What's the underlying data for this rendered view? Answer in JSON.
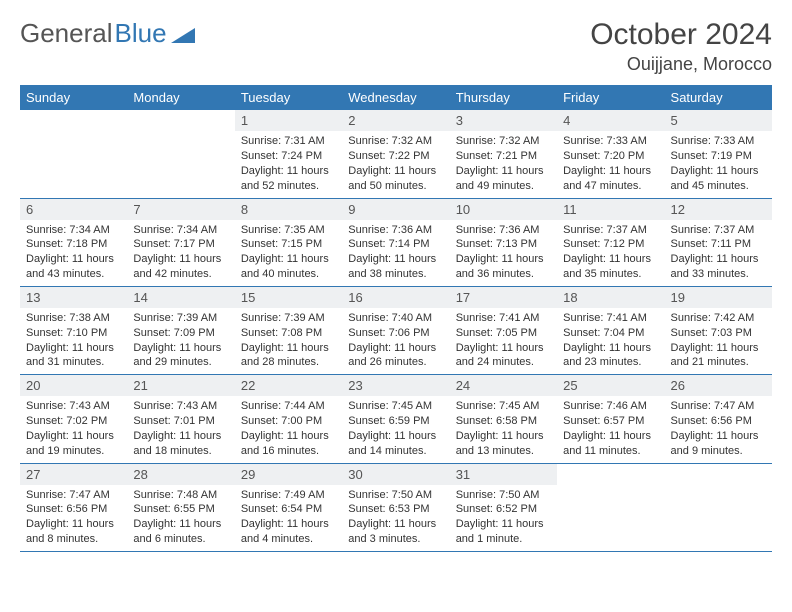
{
  "logo": {
    "text1": "General",
    "text2": "Blue"
  },
  "title": "October 2024",
  "location": "Ouijjane, Morocco",
  "colors": {
    "header_bg": "#3277b3",
    "daynum_bg": "#eef0f2"
  },
  "day_headers": [
    "Sunday",
    "Monday",
    "Tuesday",
    "Wednesday",
    "Thursday",
    "Friday",
    "Saturday"
  ],
  "weeks": [
    [
      {
        "n": "",
        "sr": "",
        "ss": "",
        "dl": ""
      },
      {
        "n": "",
        "sr": "",
        "ss": "",
        "dl": ""
      },
      {
        "n": "1",
        "sr": "Sunrise: 7:31 AM",
        "ss": "Sunset: 7:24 PM",
        "dl": "Daylight: 11 hours and 52 minutes."
      },
      {
        "n": "2",
        "sr": "Sunrise: 7:32 AM",
        "ss": "Sunset: 7:22 PM",
        "dl": "Daylight: 11 hours and 50 minutes."
      },
      {
        "n": "3",
        "sr": "Sunrise: 7:32 AM",
        "ss": "Sunset: 7:21 PM",
        "dl": "Daylight: 11 hours and 49 minutes."
      },
      {
        "n": "4",
        "sr": "Sunrise: 7:33 AM",
        "ss": "Sunset: 7:20 PM",
        "dl": "Daylight: 11 hours and 47 minutes."
      },
      {
        "n": "5",
        "sr": "Sunrise: 7:33 AM",
        "ss": "Sunset: 7:19 PM",
        "dl": "Daylight: 11 hours and 45 minutes."
      }
    ],
    [
      {
        "n": "6",
        "sr": "Sunrise: 7:34 AM",
        "ss": "Sunset: 7:18 PM",
        "dl": "Daylight: 11 hours and 43 minutes."
      },
      {
        "n": "7",
        "sr": "Sunrise: 7:34 AM",
        "ss": "Sunset: 7:17 PM",
        "dl": "Daylight: 11 hours and 42 minutes."
      },
      {
        "n": "8",
        "sr": "Sunrise: 7:35 AM",
        "ss": "Sunset: 7:15 PM",
        "dl": "Daylight: 11 hours and 40 minutes."
      },
      {
        "n": "9",
        "sr": "Sunrise: 7:36 AM",
        "ss": "Sunset: 7:14 PM",
        "dl": "Daylight: 11 hours and 38 minutes."
      },
      {
        "n": "10",
        "sr": "Sunrise: 7:36 AM",
        "ss": "Sunset: 7:13 PM",
        "dl": "Daylight: 11 hours and 36 minutes."
      },
      {
        "n": "11",
        "sr": "Sunrise: 7:37 AM",
        "ss": "Sunset: 7:12 PM",
        "dl": "Daylight: 11 hours and 35 minutes."
      },
      {
        "n": "12",
        "sr": "Sunrise: 7:37 AM",
        "ss": "Sunset: 7:11 PM",
        "dl": "Daylight: 11 hours and 33 minutes."
      }
    ],
    [
      {
        "n": "13",
        "sr": "Sunrise: 7:38 AM",
        "ss": "Sunset: 7:10 PM",
        "dl": "Daylight: 11 hours and 31 minutes."
      },
      {
        "n": "14",
        "sr": "Sunrise: 7:39 AM",
        "ss": "Sunset: 7:09 PM",
        "dl": "Daylight: 11 hours and 29 minutes."
      },
      {
        "n": "15",
        "sr": "Sunrise: 7:39 AM",
        "ss": "Sunset: 7:08 PM",
        "dl": "Daylight: 11 hours and 28 minutes."
      },
      {
        "n": "16",
        "sr": "Sunrise: 7:40 AM",
        "ss": "Sunset: 7:06 PM",
        "dl": "Daylight: 11 hours and 26 minutes."
      },
      {
        "n": "17",
        "sr": "Sunrise: 7:41 AM",
        "ss": "Sunset: 7:05 PM",
        "dl": "Daylight: 11 hours and 24 minutes."
      },
      {
        "n": "18",
        "sr": "Sunrise: 7:41 AM",
        "ss": "Sunset: 7:04 PM",
        "dl": "Daylight: 11 hours and 23 minutes."
      },
      {
        "n": "19",
        "sr": "Sunrise: 7:42 AM",
        "ss": "Sunset: 7:03 PM",
        "dl": "Daylight: 11 hours and 21 minutes."
      }
    ],
    [
      {
        "n": "20",
        "sr": "Sunrise: 7:43 AM",
        "ss": "Sunset: 7:02 PM",
        "dl": "Daylight: 11 hours and 19 minutes."
      },
      {
        "n": "21",
        "sr": "Sunrise: 7:43 AM",
        "ss": "Sunset: 7:01 PM",
        "dl": "Daylight: 11 hours and 18 minutes."
      },
      {
        "n": "22",
        "sr": "Sunrise: 7:44 AM",
        "ss": "Sunset: 7:00 PM",
        "dl": "Daylight: 11 hours and 16 minutes."
      },
      {
        "n": "23",
        "sr": "Sunrise: 7:45 AM",
        "ss": "Sunset: 6:59 PM",
        "dl": "Daylight: 11 hours and 14 minutes."
      },
      {
        "n": "24",
        "sr": "Sunrise: 7:45 AM",
        "ss": "Sunset: 6:58 PM",
        "dl": "Daylight: 11 hours and 13 minutes."
      },
      {
        "n": "25",
        "sr": "Sunrise: 7:46 AM",
        "ss": "Sunset: 6:57 PM",
        "dl": "Daylight: 11 hours and 11 minutes."
      },
      {
        "n": "26",
        "sr": "Sunrise: 7:47 AM",
        "ss": "Sunset: 6:56 PM",
        "dl": "Daylight: 11 hours and 9 minutes."
      }
    ],
    [
      {
        "n": "27",
        "sr": "Sunrise: 7:47 AM",
        "ss": "Sunset: 6:56 PM",
        "dl": "Daylight: 11 hours and 8 minutes."
      },
      {
        "n": "28",
        "sr": "Sunrise: 7:48 AM",
        "ss": "Sunset: 6:55 PM",
        "dl": "Daylight: 11 hours and 6 minutes."
      },
      {
        "n": "29",
        "sr": "Sunrise: 7:49 AM",
        "ss": "Sunset: 6:54 PM",
        "dl": "Daylight: 11 hours and 4 minutes."
      },
      {
        "n": "30",
        "sr": "Sunrise: 7:50 AM",
        "ss": "Sunset: 6:53 PM",
        "dl": "Daylight: 11 hours and 3 minutes."
      },
      {
        "n": "31",
        "sr": "Sunrise: 7:50 AM",
        "ss": "Sunset: 6:52 PM",
        "dl": "Daylight: 11 hours and 1 minute."
      },
      {
        "n": "",
        "sr": "",
        "ss": "",
        "dl": ""
      },
      {
        "n": "",
        "sr": "",
        "ss": "",
        "dl": ""
      }
    ]
  ]
}
